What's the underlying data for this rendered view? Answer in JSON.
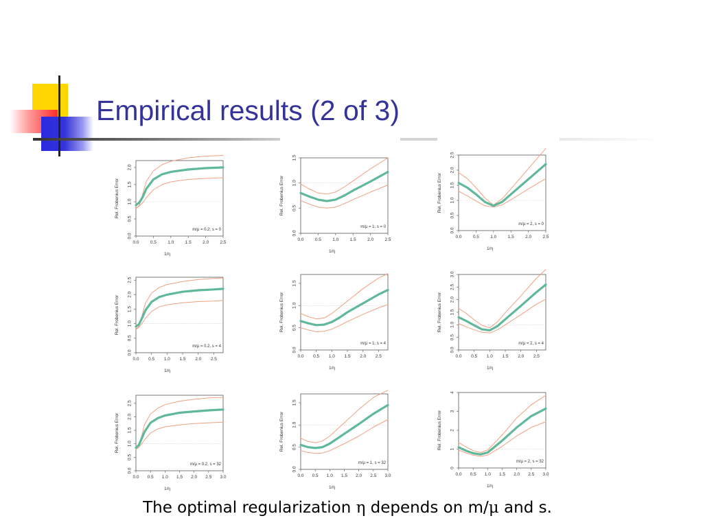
{
  "slide": {
    "title": "Empirical results (2 of 3)",
    "caption": {
      "part1": "The optimal regularization ",
      "eta": "η",
      "part2": " depends on m/",
      "mu": "μ",
      "part3": " and s."
    }
  },
  "colors": {
    "title": "#333399",
    "mean_line": "#5fb89a",
    "band_line": "#f0a080",
    "reference_line": "#cccccc"
  },
  "chart_data": [
    {
      "type": "line",
      "xlabel": "1/η",
      "ylabel": "Rel. Frobenius Error",
      "legend": "m/μ = 0.2, s = 0",
      "legend_position": "bottom-right",
      "xlim": [
        0,
        2.5
      ],
      "ylim": [
        0,
        2.2
      ],
      "xticks": [
        0.0,
        0.5,
        1.0,
        1.5,
        2.0,
        2.5
      ],
      "yticks": [
        0.0,
        0.5,
        1.0,
        1.5,
        2.0
      ],
      "reference_y": 1.0,
      "series": [
        {
          "x": [
            0.0,
            0.1,
            0.2,
            0.3,
            0.5,
            0.75,
            1.0,
            1.5,
            2.0,
            2.5
          ],
          "values": [
            0.9,
            0.98,
            1.15,
            1.38,
            1.65,
            1.8,
            1.87,
            1.94,
            1.98,
            2.0
          ]
        },
        {
          "x": [
            0.0,
            0.1,
            0.2,
            0.3,
            0.5,
            0.75,
            1.0,
            1.5,
            2.0,
            2.5
          ],
          "values": [
            0.8,
            0.9,
            1.25,
            1.6,
            1.9,
            2.08,
            2.18,
            2.28,
            2.33,
            2.35
          ]
        },
        {
          "x": [
            0.0,
            0.1,
            0.2,
            0.3,
            0.5,
            0.75,
            1.0,
            1.5,
            2.0,
            2.5
          ],
          "values": [
            0.8,
            0.88,
            0.98,
            1.12,
            1.35,
            1.5,
            1.58,
            1.65,
            1.68,
            1.7
          ]
        }
      ]
    },
    {
      "type": "line",
      "xlabel": "1/η",
      "ylabel": "Rel. Frobenius Error",
      "legend": "m/μ = 1, s = 0",
      "legend_position": "bottom-right",
      "xlim": [
        0,
        2.5
      ],
      "ylim": [
        0,
        1.5
      ],
      "xticks": [
        0.0,
        0.5,
        1.0,
        1.5,
        2.0,
        2.5
      ],
      "yticks": [
        0.0,
        0.5,
        1.0,
        1.5
      ],
      "reference_y": 1.0,
      "series": [
        {
          "x": [
            0.0,
            0.25,
            0.5,
            0.75,
            1.0,
            1.25,
            1.5,
            2.0,
            2.5
          ],
          "values": [
            0.8,
            0.73,
            0.67,
            0.64,
            0.67,
            0.75,
            0.85,
            1.03,
            1.22
          ]
        },
        {
          "x": [
            0.0,
            0.25,
            0.5,
            0.75,
            1.0,
            1.25,
            1.5,
            2.0,
            2.5
          ],
          "values": [
            0.98,
            0.88,
            0.8,
            0.78,
            0.82,
            0.92,
            1.04,
            1.28,
            1.5
          ]
        },
        {
          "x": [
            0.0,
            0.25,
            0.5,
            0.75,
            1.0,
            1.25,
            1.5,
            2.0,
            2.5
          ],
          "values": [
            0.65,
            0.58,
            0.52,
            0.5,
            0.52,
            0.59,
            0.67,
            0.82,
            0.96
          ]
        }
      ]
    },
    {
      "type": "line",
      "xlabel": "1/η",
      "ylabel": "Rel. Frobenius Error",
      "legend": "m/μ = 2, s = 0",
      "legend_position": "bottom-right",
      "xlim": [
        0,
        2.5
      ],
      "ylim": [
        0,
        2.5
      ],
      "xticks": [
        0.0,
        0.5,
        1.0,
        1.5,
        2.0,
        2.5
      ],
      "yticks": [
        0.0,
        0.5,
        1.0,
        1.5,
        2.0,
        2.5
      ],
      "reference_y": 1.0,
      "series": [
        {
          "x": [
            0.0,
            0.25,
            0.5,
            0.75,
            1.0,
            1.25,
            1.5,
            2.0,
            2.5
          ],
          "values": [
            1.58,
            1.42,
            1.2,
            0.95,
            0.82,
            0.95,
            1.2,
            1.7,
            2.2
          ]
        },
        {
          "x": [
            0.0,
            0.25,
            0.5,
            0.75,
            1.0,
            1.25,
            1.5,
            2.0,
            2.5
          ],
          "values": [
            1.92,
            1.72,
            1.42,
            1.08,
            0.85,
            1.05,
            1.38,
            2.05,
            2.72
          ]
        },
        {
          "x": [
            0.0,
            0.25,
            0.5,
            0.75,
            1.0,
            1.25,
            1.5,
            2.0,
            2.5
          ],
          "values": [
            1.3,
            1.15,
            0.98,
            0.82,
            0.78,
            0.85,
            1.02,
            1.38,
            1.72
          ]
        }
      ]
    },
    {
      "type": "line",
      "xlabel": "1/η",
      "ylabel": "Rel. Frobenius Error",
      "legend": "m/μ = 0.2, s = 4",
      "legend_position": "bottom-right",
      "xlim": [
        0,
        2.8
      ],
      "ylim": [
        0,
        2.6
      ],
      "xticks": [
        0.0,
        0.5,
        1.0,
        1.5,
        2.0,
        2.5
      ],
      "yticks": [
        0.0,
        0.5,
        1.0,
        1.5,
        2.0,
        2.5
      ],
      "reference_y": 1.0,
      "series": [
        {
          "x": [
            0.0,
            0.1,
            0.2,
            0.3,
            0.5,
            0.75,
            1.0,
            1.5,
            2.0,
            2.5,
            2.8
          ],
          "values": [
            0.9,
            0.98,
            1.2,
            1.45,
            1.75,
            1.92,
            2.0,
            2.1,
            2.15,
            2.18,
            2.2
          ]
        },
        {
          "x": [
            0.0,
            0.1,
            0.2,
            0.3,
            0.5,
            0.75,
            1.0,
            1.5,
            2.0,
            2.5,
            2.8
          ],
          "values": [
            0.8,
            0.92,
            1.3,
            1.7,
            2.05,
            2.25,
            2.35,
            2.45,
            2.52,
            2.56,
            2.57
          ]
        },
        {
          "x": [
            0.0,
            0.1,
            0.2,
            0.3,
            0.5,
            0.75,
            1.0,
            1.5,
            2.0,
            2.5,
            2.8
          ],
          "values": [
            0.8,
            0.88,
            1.02,
            1.18,
            1.42,
            1.58,
            1.65,
            1.72,
            1.76,
            1.78,
            1.8
          ]
        }
      ]
    },
    {
      "type": "line",
      "xlabel": "1/η",
      "ylabel": "Rel. Frobenius Error",
      "legend": "m/μ = 1, s = 4",
      "legend_position": "bottom-right",
      "xlim": [
        0,
        2.8
      ],
      "ylim": [
        0,
        1.7
      ],
      "xticks": [
        0.0,
        0.5,
        1.0,
        1.5,
        2.0,
        2.5
      ],
      "yticks": [
        0.0,
        0.5,
        1.0,
        1.5
      ],
      "reference_y": 1.0,
      "series": [
        {
          "x": [
            0.0,
            0.25,
            0.5,
            0.75,
            1.0,
            1.25,
            1.5,
            2.0,
            2.5,
            2.8
          ],
          "values": [
            0.65,
            0.6,
            0.56,
            0.57,
            0.63,
            0.73,
            0.85,
            1.05,
            1.25,
            1.35
          ]
        },
        {
          "x": [
            0.0,
            0.25,
            0.5,
            0.75,
            1.0,
            1.25,
            1.5,
            2.0,
            2.5,
            2.8
          ],
          "values": [
            0.82,
            0.75,
            0.7,
            0.72,
            0.82,
            0.96,
            1.1,
            1.38,
            1.62,
            1.72
          ]
        },
        {
          "x": [
            0.0,
            0.25,
            0.5,
            0.75,
            1.0,
            1.25,
            1.5,
            2.0,
            2.5,
            2.8
          ],
          "values": [
            0.5,
            0.45,
            0.41,
            0.42,
            0.47,
            0.55,
            0.64,
            0.8,
            0.95,
            1.02
          ]
        }
      ]
    },
    {
      "type": "line",
      "xlabel": "1/η",
      "ylabel": "Rel. Frobenius Error",
      "legend": "m/μ = 2, s = 4",
      "legend_position": "bottom-right",
      "xlim": [
        0,
        2.8
      ],
      "ylim": [
        0,
        3.0
      ],
      "xticks": [
        0.0,
        0.5,
        1.0,
        1.5,
        2.0,
        2.5
      ],
      "yticks": [
        0.0,
        0.5,
        1.0,
        1.5,
        2.0,
        2.5,
        3.0
      ],
      "reference_y": 1.0,
      "series": [
        {
          "x": [
            0.0,
            0.25,
            0.5,
            0.75,
            1.0,
            1.25,
            1.5,
            2.0,
            2.5,
            2.8
          ],
          "values": [
            1.3,
            1.15,
            0.98,
            0.82,
            0.78,
            0.95,
            1.22,
            1.75,
            2.3,
            2.6
          ]
        },
        {
          "x": [
            0.0,
            0.25,
            0.5,
            0.75,
            1.0,
            1.25,
            1.5,
            2.0,
            2.5,
            2.8
          ],
          "values": [
            1.65,
            1.45,
            1.2,
            0.98,
            0.88,
            1.12,
            1.48,
            2.15,
            2.85,
            3.2
          ]
        },
        {
          "x": [
            0.0,
            0.25,
            0.5,
            0.75,
            1.0,
            1.25,
            1.5,
            2.0,
            2.5,
            2.8
          ],
          "values": [
            1.05,
            0.92,
            0.8,
            0.7,
            0.68,
            0.8,
            1.0,
            1.4,
            1.82,
            2.02
          ]
        }
      ]
    },
    {
      "type": "line",
      "xlabel": "1/η",
      "ylabel": "Rel. Frobenius Error",
      "legend": "m/μ = 0.2, s = 32",
      "legend_position": "bottom-right",
      "xlim": [
        0,
        3.0
      ],
      "ylim": [
        0,
        2.8
      ],
      "xticks": [
        0.0,
        0.5,
        1.0,
        1.5,
        2.0,
        2.5,
        3.0
      ],
      "yticks": [
        0.0,
        0.5,
        1.0,
        1.5,
        2.0,
        2.5
      ],
      "reference_y": 1.0,
      "series": [
        {
          "x": [
            0.0,
            0.1,
            0.2,
            0.3,
            0.5,
            0.75,
            1.0,
            1.5,
            2.0,
            2.5,
            3.0
          ],
          "values": [
            0.85,
            0.95,
            1.2,
            1.45,
            1.78,
            1.95,
            2.05,
            2.15,
            2.2,
            2.24,
            2.27
          ]
        },
        {
          "x": [
            0.0,
            0.1,
            0.2,
            0.3,
            0.5,
            0.75,
            1.0,
            1.5,
            2.0,
            2.5,
            3.0
          ],
          "values": [
            0.8,
            0.92,
            1.3,
            1.72,
            2.1,
            2.32,
            2.45,
            2.58,
            2.65,
            2.7,
            2.72
          ]
        },
        {
          "x": [
            0.0,
            0.1,
            0.2,
            0.3,
            0.5,
            0.75,
            1.0,
            1.5,
            2.0,
            2.5,
            3.0
          ],
          "values": [
            0.8,
            0.86,
            1.0,
            1.15,
            1.4,
            1.55,
            1.63,
            1.7,
            1.75,
            1.78,
            1.8
          ]
        }
      ]
    },
    {
      "type": "line",
      "xlabel": "1/η",
      "ylabel": "Rel. Frobenius Error",
      "legend": "m/μ = 1, s = 32",
      "legend_position": "bottom-right",
      "xlim": [
        0,
        3.0
      ],
      "ylim": [
        0,
        1.7
      ],
      "xticks": [
        0.0,
        0.5,
        1.0,
        1.5,
        2.0,
        2.5,
        3.0
      ],
      "yticks": [
        0.0,
        0.5,
        1.0,
        1.5
      ],
      "reference_y": 1.0,
      "series": [
        {
          "x": [
            0.0,
            0.25,
            0.5,
            0.75,
            1.0,
            1.5,
            2.0,
            2.5,
            3.0
          ],
          "values": [
            0.55,
            0.5,
            0.48,
            0.5,
            0.58,
            0.8,
            1.02,
            1.25,
            1.45
          ]
        },
        {
          "x": [
            0.0,
            0.25,
            0.5,
            0.75,
            1.0,
            1.5,
            2.0,
            2.5,
            3.0
          ],
          "values": [
            0.7,
            0.63,
            0.6,
            0.64,
            0.75,
            1.05,
            1.35,
            1.62,
            1.78
          ]
        },
        {
          "x": [
            0.0,
            0.25,
            0.5,
            0.75,
            1.0,
            1.5,
            2.0,
            2.5,
            3.0
          ],
          "values": [
            0.42,
            0.38,
            0.36,
            0.37,
            0.42,
            0.58,
            0.75,
            0.95,
            1.12
          ]
        }
      ]
    },
    {
      "type": "line",
      "xlabel": "1/η",
      "ylabel": "Rel. Frobenius Error",
      "legend": "m/μ = 2, s = 32",
      "legend_position": "bottom-right",
      "xlim": [
        0,
        3.0
      ],
      "ylim": [
        0,
        4.0
      ],
      "xticks": [
        0.0,
        0.5,
        1.0,
        1.5,
        2.0,
        2.5,
        3.0
      ],
      "yticks": [
        0,
        1,
        2,
        3,
        4
      ],
      "reference_y": 1.0,
      "series": [
        {
          "x": [
            0.0,
            0.25,
            0.5,
            0.75,
            1.0,
            1.5,
            2.0,
            2.5,
            3.0
          ],
          "values": [
            1.1,
            0.92,
            0.78,
            0.72,
            0.82,
            1.45,
            2.15,
            2.75,
            3.15
          ]
        },
        {
          "x": [
            0.0,
            0.25,
            0.5,
            0.75,
            1.0,
            1.5,
            2.0,
            2.5,
            3.0
          ],
          "values": [
            1.35,
            1.12,
            0.92,
            0.82,
            0.95,
            1.75,
            2.65,
            3.35,
            3.85
          ]
        },
        {
          "x": [
            0.0,
            0.25,
            0.5,
            0.75,
            1.0,
            1.5,
            2.0,
            2.5,
            3.0
          ],
          "values": [
            0.95,
            0.8,
            0.68,
            0.62,
            0.68,
            1.15,
            1.7,
            2.15,
            2.45
          ]
        }
      ]
    }
  ]
}
